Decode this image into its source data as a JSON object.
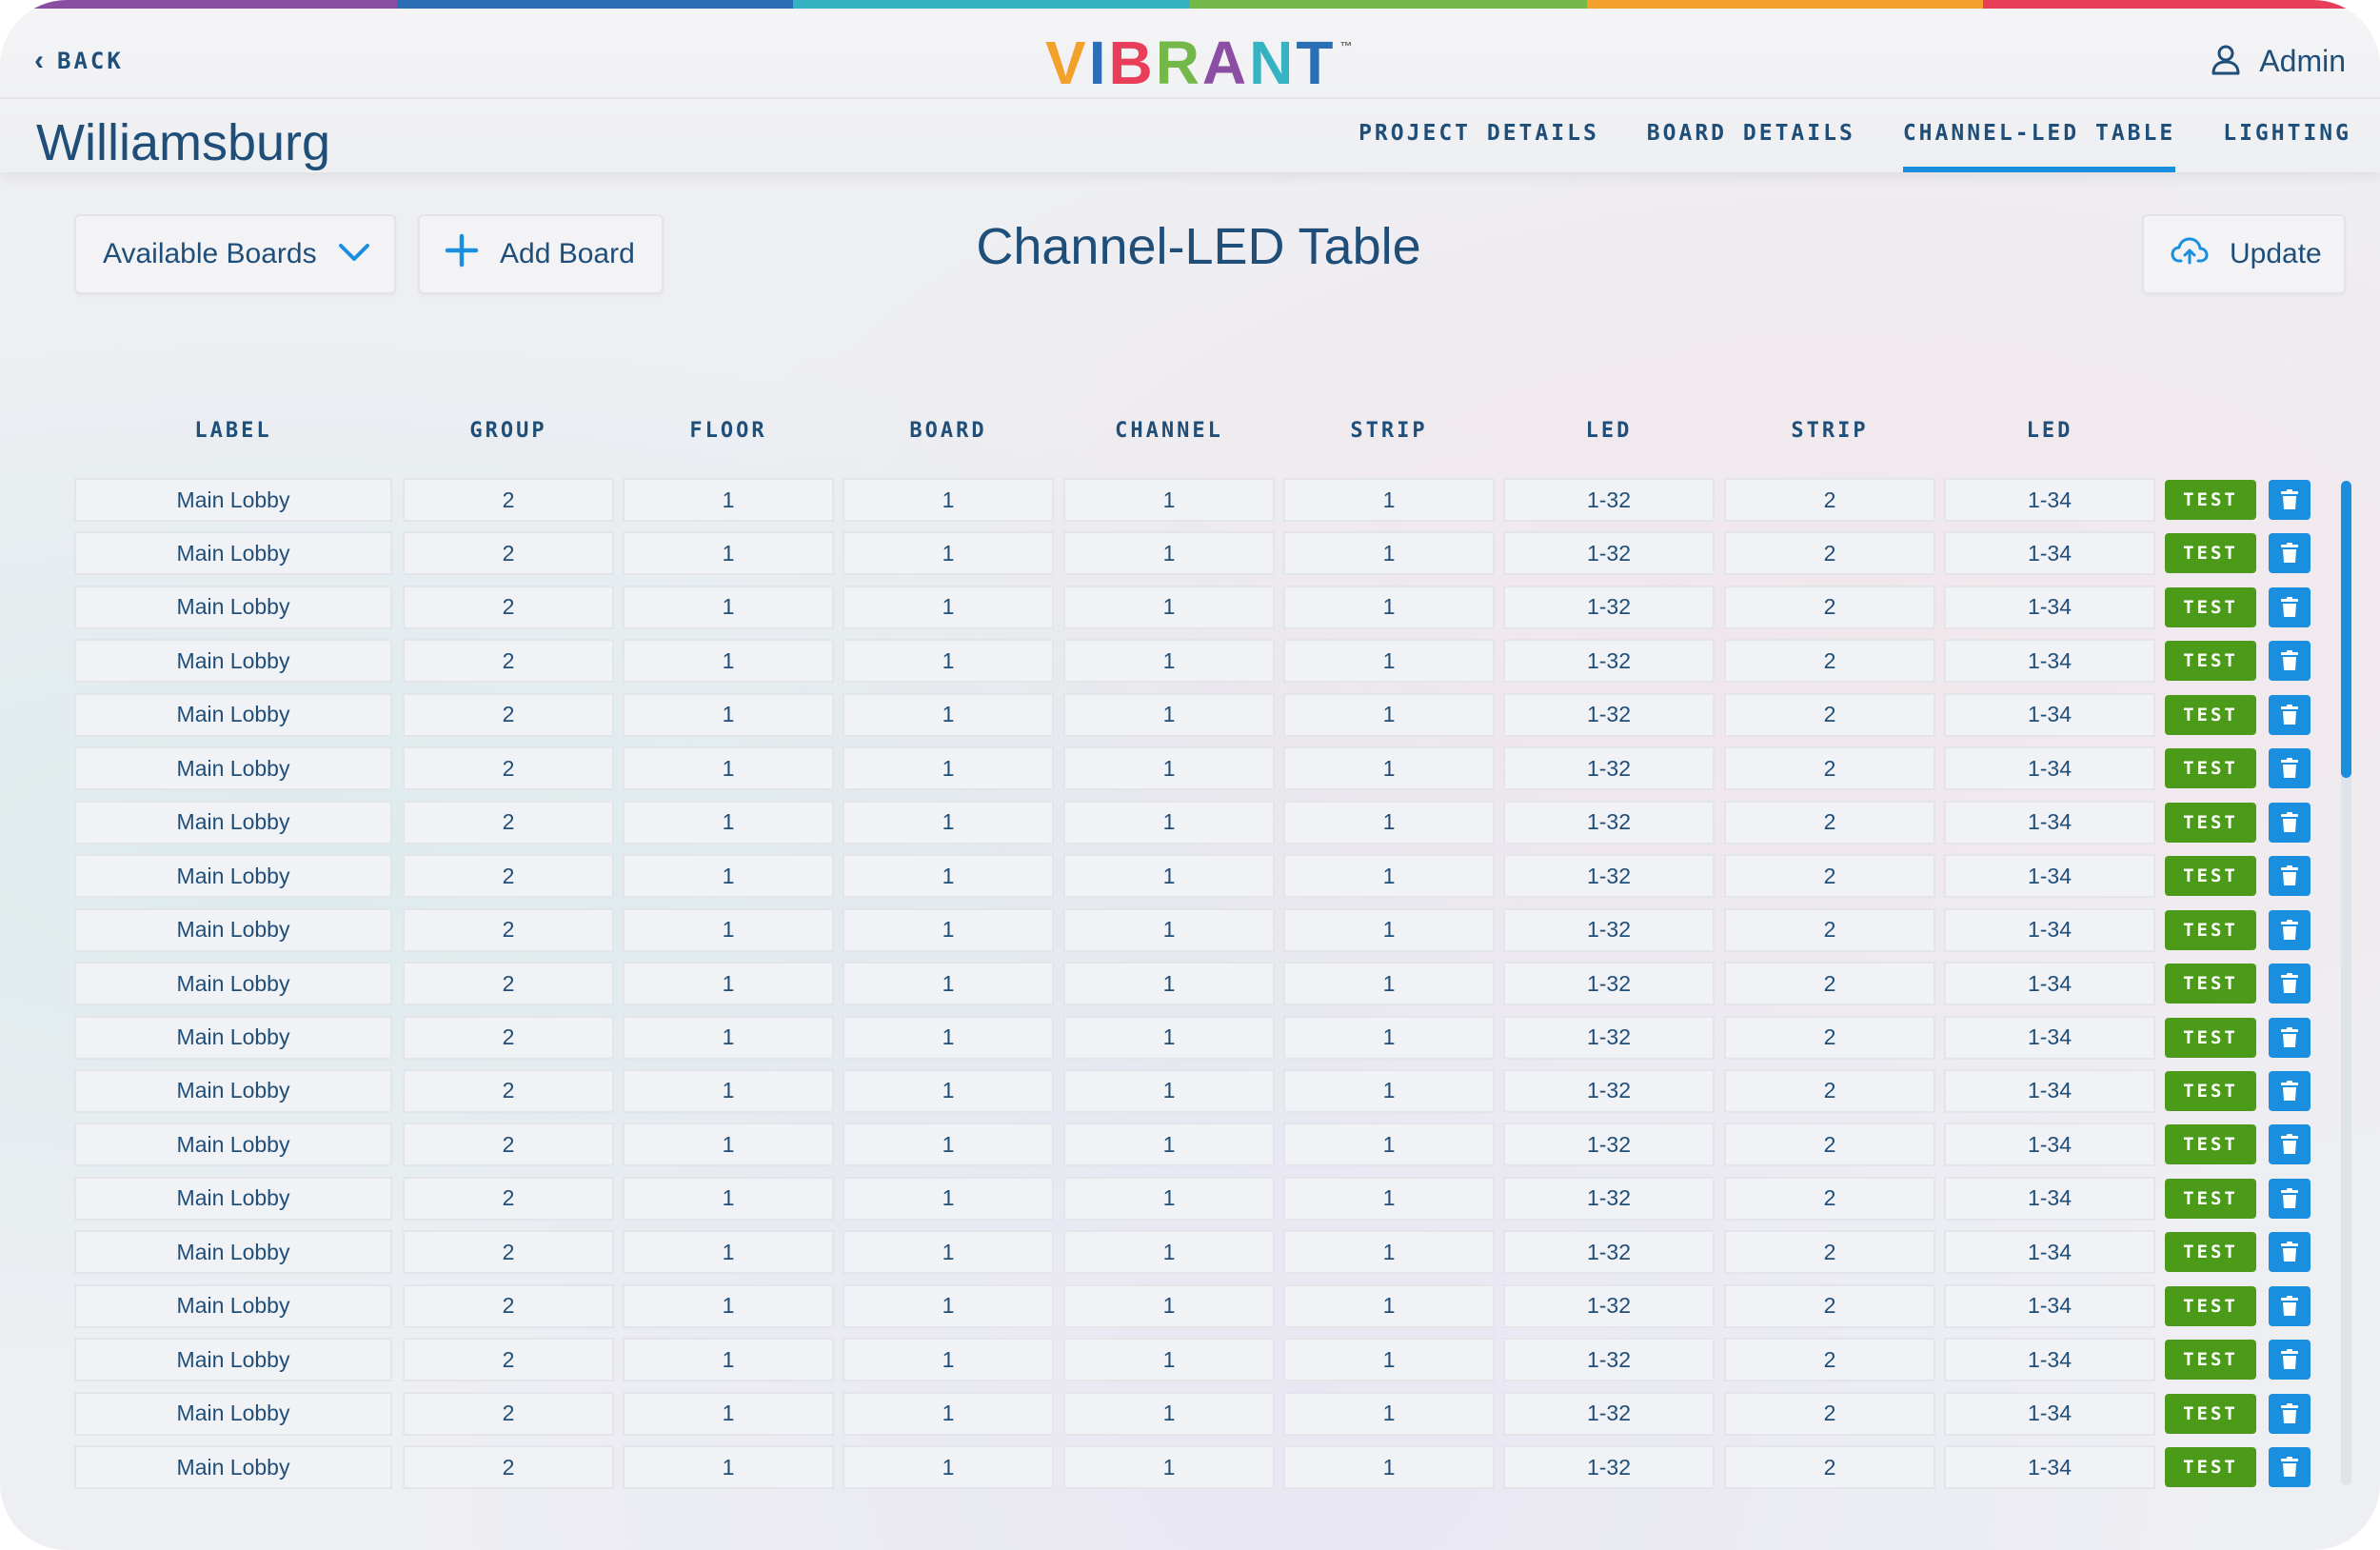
{
  "brand": {
    "logo_text": "VIBRANT",
    "tm": "™",
    "rainbow_colors": [
      "#8a4ea3",
      "#2a6fb5",
      "#35b3c2",
      "#74b84a",
      "#f2a22c",
      "#e83e5a"
    ],
    "logo_letter_colors": [
      "#f2a22c",
      "#2a6fb5",
      "#e83e5a",
      "#74b84a",
      "#8a4ea3",
      "#35b3c2",
      "#2a6fb5"
    ]
  },
  "header": {
    "back_label": "BACK",
    "user_name": "Admin",
    "project_title": "Williamsburg"
  },
  "nav": {
    "tabs": [
      {
        "label": "PROJECT DETAILS",
        "active": false
      },
      {
        "label": "BOARD DETAILS",
        "active": false
      },
      {
        "label": "CHANNEL-LED TABLE",
        "active": true
      },
      {
        "label": "LIGHTING",
        "active": false
      }
    ]
  },
  "toolbar": {
    "available_boards_label": "Available Boards",
    "add_board_label": "Add Board",
    "update_label": "Update"
  },
  "page": {
    "heading": "Channel-LED Table"
  },
  "table": {
    "columns": [
      "LABEL",
      "GROUP",
      "FLOOR",
      "BOARD",
      "CHANNEL",
      "STRIP",
      "LED",
      "STRIP",
      "LED"
    ],
    "test_label": "TEST",
    "rows": [
      [
        "Main Lobby",
        "2",
        "1",
        "1",
        "1",
        "1",
        "1-32",
        "2",
        "1-34"
      ],
      [
        "Main Lobby",
        "2",
        "1",
        "1",
        "1",
        "1",
        "1-32",
        "2",
        "1-34"
      ],
      [
        "Main Lobby",
        "2",
        "1",
        "1",
        "1",
        "1",
        "1-32",
        "2",
        "1-34"
      ],
      [
        "Main Lobby",
        "2",
        "1",
        "1",
        "1",
        "1",
        "1-32",
        "2",
        "1-34"
      ],
      [
        "Main Lobby",
        "2",
        "1",
        "1",
        "1",
        "1",
        "1-32",
        "2",
        "1-34"
      ],
      [
        "Main Lobby",
        "2",
        "1",
        "1",
        "1",
        "1",
        "1-32",
        "2",
        "1-34"
      ],
      [
        "Main Lobby",
        "2",
        "1",
        "1",
        "1",
        "1",
        "1-32",
        "2",
        "1-34"
      ],
      [
        "Main Lobby",
        "2",
        "1",
        "1",
        "1",
        "1",
        "1-32",
        "2",
        "1-34"
      ],
      [
        "Main Lobby",
        "2",
        "1",
        "1",
        "1",
        "1",
        "1-32",
        "2",
        "1-34"
      ],
      [
        "Main Lobby",
        "2",
        "1",
        "1",
        "1",
        "1",
        "1-32",
        "2",
        "1-34"
      ],
      [
        "Main Lobby",
        "2",
        "1",
        "1",
        "1",
        "1",
        "1-32",
        "2",
        "1-34"
      ],
      [
        "Main Lobby",
        "2",
        "1",
        "1",
        "1",
        "1",
        "1-32",
        "2",
        "1-34"
      ],
      [
        "Main Lobby",
        "2",
        "1",
        "1",
        "1",
        "1",
        "1-32",
        "2",
        "1-34"
      ],
      [
        "Main Lobby",
        "2",
        "1",
        "1",
        "1",
        "1",
        "1-32",
        "2",
        "1-34"
      ],
      [
        "Main Lobby",
        "2",
        "1",
        "1",
        "1",
        "1",
        "1-32",
        "2",
        "1-34"
      ],
      [
        "Main Lobby",
        "2",
        "1",
        "1",
        "1",
        "1",
        "1-32",
        "2",
        "1-34"
      ],
      [
        "Main Lobby",
        "2",
        "1",
        "1",
        "1",
        "1",
        "1-32",
        "2",
        "1-34"
      ],
      [
        "Main Lobby",
        "2",
        "1",
        "1",
        "1",
        "1",
        "1-32",
        "2",
        "1-34"
      ],
      [
        "Main Lobby",
        "2",
        "1",
        "1",
        "1",
        "1",
        "1-32",
        "2",
        "1-34"
      ]
    ]
  },
  "colors": {
    "accent_blue": "#1a8fe0",
    "text_navy": "#1f4e79",
    "test_green": "#4c9a1a"
  }
}
